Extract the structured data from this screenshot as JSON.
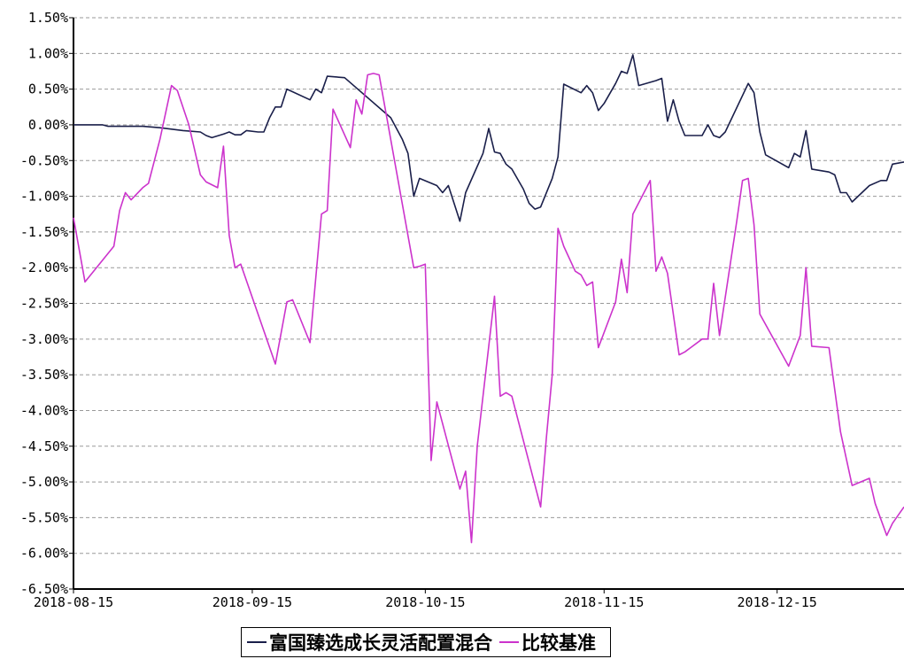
{
  "chart_data": {
    "type": "line",
    "title": "",
    "xlabel": "",
    "ylabel": "",
    "x_range": [
      "2018-08-15",
      "2018-12-31"
    ],
    "ylim": [
      -6.5,
      1.5
    ],
    "grid": true,
    "legend_position": "bottom",
    "x_tick_labels": [
      "2018-08-15",
      "2018-09-15",
      "2018-10-15",
      "2018-11-15",
      "2018-12-15"
    ],
    "y_tick_labels": [
      "1.50%",
      "1.00%",
      "0.50%",
      "0.00%",
      "-0.50%",
      "-1.00%",
      "-1.50%",
      "-2.00%",
      "-2.50%",
      "-3.00%",
      "-3.50%",
      "-4.00%",
      "-4.50%",
      "-5.00%",
      "-5.50%",
      "-6.00%",
      "-6.50%"
    ],
    "y_ticks": [
      1.5,
      1.0,
      0.5,
      0.0,
      -0.5,
      -1.0,
      -1.5,
      -2.0,
      -2.5,
      -3.0,
      -3.5,
      -4.0,
      -4.5,
      -5.0,
      -5.5,
      -6.0,
      -6.5
    ],
    "series": [
      {
        "name": "富国臻选成长灵活配置混合",
        "color": "#1a1f4a",
        "points": [
          [
            "2018-08-15",
            0.0
          ],
          [
            "2018-08-20",
            0.0
          ],
          [
            "2018-08-21",
            -0.02
          ],
          [
            "2018-08-27",
            -0.02
          ],
          [
            "2018-08-30",
            -0.04
          ],
          [
            "2018-09-03",
            -0.08
          ],
          [
            "2018-09-06",
            -0.1
          ],
          [
            "2018-09-07",
            -0.15
          ],
          [
            "2018-09-08",
            -0.18
          ],
          [
            "2018-09-10",
            -0.13
          ],
          [
            "2018-09-11",
            -0.1
          ],
          [
            "2018-09-12",
            -0.14
          ],
          [
            "2018-09-13",
            -0.14
          ],
          [
            "2018-09-14",
            -0.08
          ],
          [
            "2018-09-16",
            -0.1
          ],
          [
            "2018-09-17",
            -0.1
          ],
          [
            "2018-09-18",
            0.1
          ],
          [
            "2018-09-19",
            0.25
          ],
          [
            "2018-09-20",
            0.25
          ],
          [
            "2018-09-21",
            0.5
          ],
          [
            "2018-09-25",
            0.35
          ],
          [
            "2018-09-26",
            0.5
          ],
          [
            "2018-09-27",
            0.45
          ],
          [
            "2018-09-28",
            0.68
          ],
          [
            "2018-10-01",
            0.66
          ],
          [
            "2018-10-09",
            0.1
          ],
          [
            "2018-10-11",
            -0.2
          ],
          [
            "2018-10-12",
            -0.4
          ],
          [
            "2018-10-13",
            -1.0
          ],
          [
            "2018-10-14",
            -0.75
          ],
          [
            "2018-10-17",
            -0.85
          ],
          [
            "2018-10-18",
            -0.95
          ],
          [
            "2018-10-19",
            -0.85
          ],
          [
            "2018-10-20",
            -1.1
          ],
          [
            "2018-10-21",
            -1.35
          ],
          [
            "2018-10-22",
            -0.95
          ],
          [
            "2018-10-25",
            -0.4
          ],
          [
            "2018-10-26",
            -0.05
          ],
          [
            "2018-10-27",
            -0.38
          ],
          [
            "2018-10-28",
            -0.4
          ],
          [
            "2018-10-29",
            -0.55
          ],
          [
            "2018-10-30",
            -0.62
          ],
          [
            "2018-11-01",
            -0.9
          ],
          [
            "2018-11-02",
            -1.1
          ],
          [
            "2018-11-03",
            -1.18
          ],
          [
            "2018-11-04",
            -1.15
          ],
          [
            "2018-11-06",
            -0.75
          ],
          [
            "2018-11-07",
            -0.45
          ],
          [
            "2018-11-08",
            0.57
          ],
          [
            "2018-11-11",
            0.45
          ],
          [
            "2018-11-12",
            0.55
          ],
          [
            "2018-11-13",
            0.45
          ],
          [
            "2018-11-14",
            0.2
          ],
          [
            "2018-11-15",
            0.3
          ],
          [
            "2018-11-17",
            0.58
          ],
          [
            "2018-11-18",
            0.75
          ],
          [
            "2018-11-19",
            0.72
          ],
          [
            "2018-11-20",
            0.98
          ],
          [
            "2018-11-21",
            0.55
          ],
          [
            "2018-11-24",
            0.62
          ],
          [
            "2018-11-25",
            0.65
          ],
          [
            "2018-11-26",
            0.05
          ],
          [
            "2018-11-27",
            0.35
          ],
          [
            "2018-11-28",
            0.05
          ],
          [
            "2018-11-29",
            -0.15
          ],
          [
            "2018-12-02",
            -0.15
          ],
          [
            "2018-12-03",
            0.0
          ],
          [
            "2018-12-04",
            -0.15
          ],
          [
            "2018-12-05",
            -0.18
          ],
          [
            "2018-12-06",
            -0.1
          ],
          [
            "2018-12-10",
            0.58
          ],
          [
            "2018-12-11",
            0.45
          ],
          [
            "2018-12-12",
            -0.1
          ],
          [
            "2018-12-13",
            -0.42
          ],
          [
            "2018-12-17",
            -0.6
          ],
          [
            "2018-12-18",
            -0.4
          ],
          [
            "2018-12-19",
            -0.45
          ],
          [
            "2018-12-20",
            -0.08
          ],
          [
            "2018-12-21",
            -0.62
          ],
          [
            "2018-12-24",
            -0.66
          ],
          [
            "2018-12-25",
            -0.7
          ],
          [
            "2018-12-26",
            -0.95
          ],
          [
            "2018-12-27",
            -0.95
          ],
          [
            "2018-12-28",
            -1.08
          ],
          [
            "2018-12-31",
            -0.85
          ],
          [
            "2019-01-02",
            -0.78
          ],
          [
            "2019-01-03",
            -0.78
          ],
          [
            "2019-01-04",
            -0.55
          ],
          [
            "2019-01-06",
            -0.52
          ]
        ]
      },
      {
        "name": "比较基准",
        "color": "#cc33cc",
        "points": [
          [
            "2018-08-15",
            -1.3
          ],
          [
            "2018-08-17",
            -2.2
          ],
          [
            "2018-08-22",
            -1.7
          ],
          [
            "2018-08-23",
            -1.2
          ],
          [
            "2018-08-24",
            -0.95
          ],
          [
            "2018-08-25",
            -1.05
          ],
          [
            "2018-08-27",
            -0.88
          ],
          [
            "2018-08-28",
            -0.82
          ],
          [
            "2018-08-30",
            -0.2
          ],
          [
            "2018-09-01",
            0.55
          ],
          [
            "2018-09-02",
            0.48
          ],
          [
            "2018-09-04",
            0.0
          ],
          [
            "2018-09-05",
            -0.35
          ],
          [
            "2018-09-06",
            -0.7
          ],
          [
            "2018-09-07",
            -0.8
          ],
          [
            "2018-09-09",
            -0.88
          ],
          [
            "2018-09-10",
            -0.3
          ],
          [
            "2018-09-11",
            -1.55
          ],
          [
            "2018-09-12",
            -2.0
          ],
          [
            "2018-09-13",
            -1.95
          ],
          [
            "2018-09-19",
            -3.35
          ],
          [
            "2018-09-21",
            -2.48
          ],
          [
            "2018-09-22",
            -2.45
          ],
          [
            "2018-09-25",
            -3.05
          ],
          [
            "2018-09-27",
            -1.25
          ],
          [
            "2018-09-28",
            -1.2
          ],
          [
            "2018-09-29",
            0.22
          ],
          [
            "2018-10-02",
            -0.32
          ],
          [
            "2018-10-03",
            0.35
          ],
          [
            "2018-10-04",
            0.15
          ],
          [
            "2018-10-05",
            0.7
          ],
          [
            "2018-10-06",
            0.72
          ],
          [
            "2018-10-07",
            0.7
          ],
          [
            "2018-10-13",
            -2.0
          ],
          [
            "2018-10-14",
            -1.98
          ],
          [
            "2018-10-15",
            -1.95
          ],
          [
            "2018-10-16",
            -4.7
          ],
          [
            "2018-10-17",
            -3.88
          ],
          [
            "2018-10-21",
            -5.1
          ],
          [
            "2018-10-22",
            -4.85
          ],
          [
            "2018-10-23",
            -5.85
          ],
          [
            "2018-10-24",
            -4.5
          ],
          [
            "2018-10-27",
            -2.4
          ],
          [
            "2018-10-28",
            -3.8
          ],
          [
            "2018-10-29",
            -3.75
          ],
          [
            "2018-10-30",
            -3.8
          ],
          [
            "2018-11-04",
            -5.35
          ],
          [
            "2018-11-05",
            -4.38
          ],
          [
            "2018-11-06",
            -3.5
          ],
          [
            "2018-11-07",
            -1.45
          ],
          [
            "2018-11-08",
            -1.7
          ],
          [
            "2018-11-10",
            -2.05
          ],
          [
            "2018-11-11",
            -2.1
          ],
          [
            "2018-11-12",
            -2.25
          ],
          [
            "2018-11-13",
            -2.2
          ],
          [
            "2018-11-14",
            -3.12
          ],
          [
            "2018-11-17",
            -2.48
          ],
          [
            "2018-11-18",
            -1.88
          ],
          [
            "2018-11-19",
            -2.35
          ],
          [
            "2018-11-20",
            -1.25
          ],
          [
            "2018-11-23",
            -0.78
          ],
          [
            "2018-11-24",
            -2.05
          ],
          [
            "2018-11-25",
            -1.85
          ],
          [
            "2018-11-26",
            -2.08
          ],
          [
            "2018-11-28",
            -3.22
          ],
          [
            "2018-11-29",
            -3.18
          ],
          [
            "2018-11-30",
            -3.12
          ],
          [
            "2018-12-02",
            -3.0
          ],
          [
            "2018-12-03",
            -3.0
          ],
          [
            "2018-12-04",
            -2.22
          ],
          [
            "2018-12-05",
            -2.95
          ],
          [
            "2018-12-08",
            -1.35
          ],
          [
            "2018-12-09",
            -0.78
          ],
          [
            "2018-12-10",
            -0.75
          ],
          [
            "2018-12-11",
            -1.4
          ],
          [
            "2018-12-12",
            -2.65
          ],
          [
            "2018-12-17",
            -3.38
          ],
          [
            "2018-12-19",
            -2.95
          ],
          [
            "2018-12-20",
            -2.0
          ],
          [
            "2018-12-21",
            -3.1
          ],
          [
            "2018-12-24",
            -3.12
          ],
          [
            "2018-12-26",
            -4.3
          ],
          [
            "2018-12-28",
            -5.05
          ],
          [
            "2018-12-31",
            -4.95
          ],
          [
            "2019-01-01",
            -5.3
          ],
          [
            "2019-01-03",
            -5.75
          ],
          [
            "2019-01-04",
            -5.58
          ],
          [
            "2019-01-06",
            -5.35
          ]
        ]
      }
    ]
  }
}
